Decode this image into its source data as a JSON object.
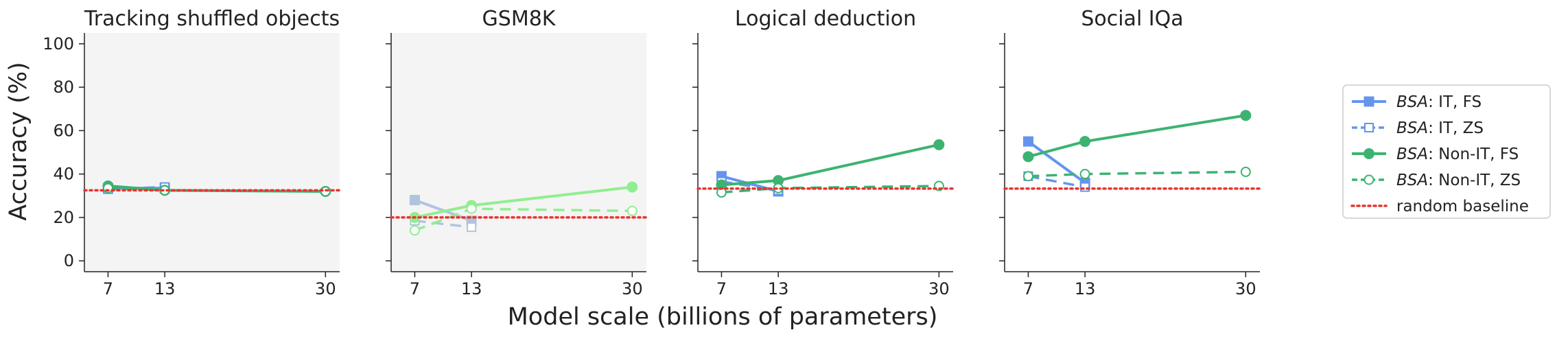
{
  "figure": {
    "ylabel": "Accuracy (%)",
    "xlabel": "Model scale (billions of parameters)",
    "y_ticks": [
      0,
      20,
      40,
      60,
      80,
      100
    ],
    "ylim": [
      -5,
      105
    ],
    "x_ticks": [
      7,
      13,
      30
    ],
    "xlim": [
      4.5,
      31.5
    ]
  },
  "legend": {
    "items": [
      {
        "method": "BSA",
        "suffix": ": IT, FS",
        "style": "it_fs"
      },
      {
        "method": "BSA",
        "suffix": ": IT, ZS",
        "style": "it_zs"
      },
      {
        "method": "BSA",
        "suffix": ": Non-IT, FS",
        "style": "nonit_fs"
      },
      {
        "method": "BSA",
        "suffix": ": Non-IT, ZS",
        "style": "nonit_zs"
      },
      {
        "method": "",
        "suffix": "random baseline",
        "style": "baseline"
      }
    ]
  },
  "colors": {
    "it": "#6495ed",
    "nonit": "#3cb371",
    "it_faded": "#b0c4de",
    "nonit_faded": "#90ee90",
    "baseline": "#e8332e",
    "shaded_bg": "#f4f4f4"
  },
  "chart_data": [
    {
      "type": "line",
      "title": "Tracking shuffled objects",
      "shaded": true,
      "faded": false,
      "random_baseline": 32.5,
      "series": [
        {
          "name": "BSA: IT, FS",
          "style": "it_fs",
          "x": [
            7,
            13
          ],
          "values": [
            33.5,
            33.5
          ]
        },
        {
          "name": "BSA: IT, ZS",
          "style": "it_zs",
          "x": [
            7,
            13
          ],
          "values": [
            33.0,
            34.0
          ]
        },
        {
          "name": "BSA: Non-IT, FS",
          "style": "nonit_fs",
          "x": [
            7,
            13,
            30
          ],
          "values": [
            34.5,
            32.5,
            32.0
          ]
        },
        {
          "name": "BSA: Non-IT, ZS",
          "style": "nonit_zs",
          "x": [
            7,
            13,
            30
          ],
          "values": [
            33.5,
            32.5,
            32.0
          ]
        }
      ]
    },
    {
      "type": "line",
      "title": "GSM8K",
      "shaded": true,
      "faded": true,
      "random_baseline": 20.0,
      "series": [
        {
          "name": "BSA: IT, FS",
          "style": "it_fs",
          "x": [
            7,
            13
          ],
          "values": [
            28.0,
            18.5
          ]
        },
        {
          "name": "BSA: IT, ZS",
          "style": "it_zs",
          "x": [
            7,
            13
          ],
          "values": [
            18.5,
            15.5
          ]
        },
        {
          "name": "BSA: Non-IT, FS",
          "style": "nonit_fs",
          "x": [
            7,
            13,
            30
          ],
          "values": [
            20.0,
            25.5,
            34.0
          ]
        },
        {
          "name": "BSA: Non-IT, ZS",
          "style": "nonit_zs",
          "x": [
            7,
            13,
            30
          ],
          "values": [
            14.0,
            24.0,
            23.0
          ]
        }
      ]
    },
    {
      "type": "line",
      "title": "Logical deduction",
      "shaded": false,
      "faded": false,
      "random_baseline": 33.3,
      "series": [
        {
          "name": "BSA: IT, FS",
          "style": "it_fs",
          "x": [
            7,
            13
          ],
          "values": [
            39.0,
            32.0
          ]
        },
        {
          "name": "BSA: IT, ZS",
          "style": "it_zs",
          "x": [
            7,
            13
          ],
          "values": [
            36.5,
            32.5
          ]
        },
        {
          "name": "BSA: Non-IT, FS",
          "style": "nonit_fs",
          "x": [
            7,
            13,
            30
          ],
          "values": [
            35.0,
            37.0,
            53.5
          ]
        },
        {
          "name": "BSA: Non-IT, ZS",
          "style": "nonit_zs",
          "x": [
            7,
            13,
            30
          ],
          "values": [
            31.5,
            33.5,
            34.5
          ]
        }
      ]
    },
    {
      "type": "line",
      "title": "Social IQa",
      "shaded": false,
      "faded": false,
      "random_baseline": 33.3,
      "series": [
        {
          "name": "BSA: IT, FS",
          "style": "it_fs",
          "x": [
            7,
            13
          ],
          "values": [
            55.0,
            36.0
          ]
        },
        {
          "name": "BSA: IT, ZS",
          "style": "it_zs",
          "x": [
            7,
            13
          ],
          "values": [
            39.0,
            34.0
          ]
        },
        {
          "name": "BSA: Non-IT, FS",
          "style": "nonit_fs",
          "x": [
            7,
            13,
            30
          ],
          "values": [
            48.0,
            55.0,
            67.0
          ]
        },
        {
          "name": "BSA: Non-IT, ZS",
          "style": "nonit_zs",
          "x": [
            7,
            13,
            30
          ],
          "values": [
            39.0,
            40.0,
            41.0
          ]
        }
      ]
    }
  ]
}
